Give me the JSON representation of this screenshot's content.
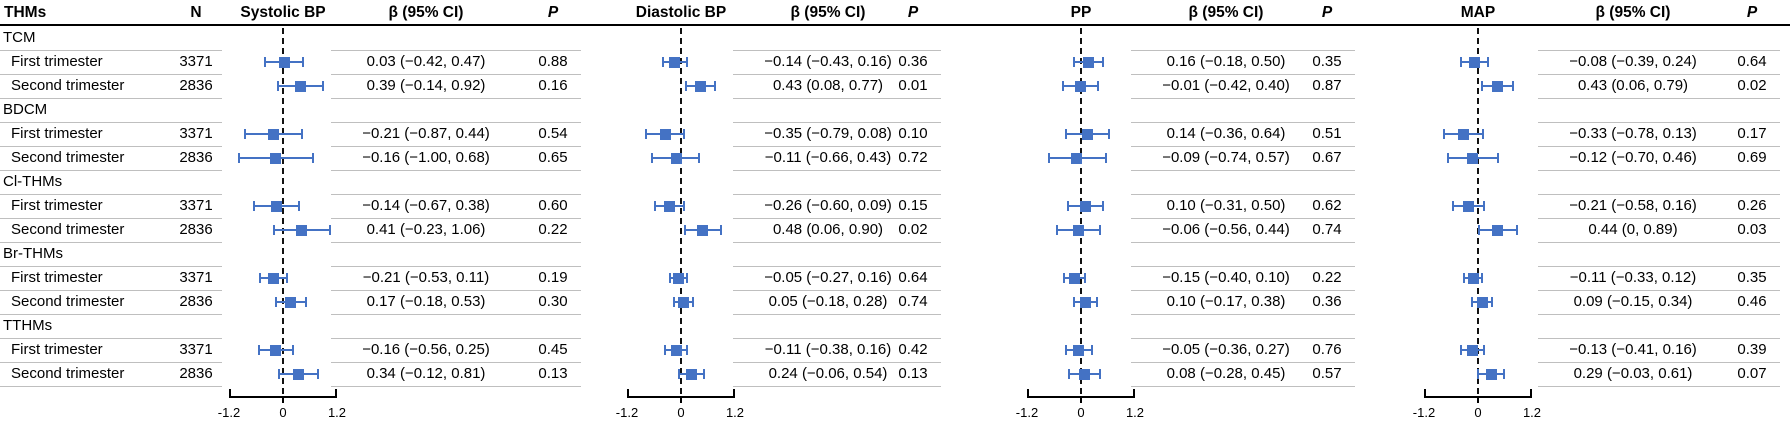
{
  "columns": {
    "thms": "THMs",
    "n": "N",
    "beta_ci": "β (95% CI)",
    "p": "P"
  },
  "colors": {
    "marker": "#4472c4",
    "separator": "#bfbfbf",
    "zero_line": "#111111",
    "text": "#000000"
  },
  "chart_data": {
    "type": "forest",
    "title": "",
    "axis": {
      "min": -1.2,
      "max": 1.2,
      "ticks": [
        -1.2,
        0,
        1.2
      ],
      "tick_labels": [
        "-1.2",
        "0",
        "1.2"
      ]
    },
    "measures": [
      {
        "key": "sbp",
        "label": "Systolic BP"
      },
      {
        "key": "dbp",
        "label": "Diastolic BP"
      },
      {
        "key": "pp",
        "label": "PP"
      },
      {
        "key": "map",
        "label": "MAP"
      }
    ],
    "groups": [
      {
        "name": "TCM",
        "rows": [
          {
            "label": "First trimester",
            "n": "3371",
            "estimates": [
              {
                "beta": 0.03,
                "lo": -0.42,
                "hi": 0.47,
                "text": "0.03 (−0.42, 0.47)",
                "p": "0.88"
              },
              {
                "beta": -0.14,
                "lo": -0.43,
                "hi": 0.16,
                "text": "−0.14 (−0.43, 0.16)",
                "p": "0.36"
              },
              {
                "beta": 0.16,
                "lo": -0.18,
                "hi": 0.5,
                "text": "0.16 (−0.18, 0.50)",
                "p": "0.35"
              },
              {
                "beta": -0.08,
                "lo": -0.39,
                "hi": 0.24,
                "text": "−0.08 (−0.39, 0.24)",
                "p": "0.64"
              }
            ]
          },
          {
            "label": "Second trimester",
            "n": "2836",
            "estimates": [
              {
                "beta": 0.39,
                "lo": -0.14,
                "hi": 0.92,
                "text": "0.39 (−0.14, 0.92)",
                "p": "0.16"
              },
              {
                "beta": 0.43,
                "lo": 0.08,
                "hi": 0.77,
                "text": "0.43 (0.08, 0.77)",
                "p": "0.01"
              },
              {
                "beta": -0.01,
                "lo": -0.42,
                "hi": 0.4,
                "text": "−0.01 (−0.42, 0.40)",
                "p": "0.87"
              },
              {
                "beta": 0.43,
                "lo": 0.06,
                "hi": 0.79,
                "text": "0.43 (0.06, 0.79)",
                "p": "0.02"
              }
            ]
          }
        ]
      },
      {
        "name": "BDCM",
        "rows": [
          {
            "label": "First trimester",
            "n": "3371",
            "estimates": [
              {
                "beta": -0.21,
                "lo": -0.87,
                "hi": 0.44,
                "text": "−0.21 (−0.87, 0.44)",
                "p": "0.54"
              },
              {
                "beta": -0.35,
                "lo": -0.79,
                "hi": 0.08,
                "text": "−0.35 (−0.79, 0.08)",
                "p": "0.10"
              },
              {
                "beta": 0.14,
                "lo": -0.36,
                "hi": 0.64,
                "text": "0.14 (−0.36, 0.64)",
                "p": "0.51"
              },
              {
                "beta": -0.33,
                "lo": -0.78,
                "hi": 0.13,
                "text": "−0.33 (−0.78, 0.13)",
                "p": "0.17"
              }
            ]
          },
          {
            "label": "Second trimester",
            "n": "2836",
            "estimates": [
              {
                "beta": -0.16,
                "lo": -1.0,
                "hi": 0.68,
                "text": "−0.16 (−1.00, 0.68)",
                "p": "0.65"
              },
              {
                "beta": -0.11,
                "lo": -0.66,
                "hi": 0.43,
                "text": "−0.11 (−0.66, 0.43)",
                "p": "0.72"
              },
              {
                "beta": -0.09,
                "lo": -0.74,
                "hi": 0.57,
                "text": "−0.09 (−0.74, 0.57)",
                "p": "0.67"
              },
              {
                "beta": -0.12,
                "lo": -0.7,
                "hi": 0.46,
                "text": "−0.12 (−0.70, 0.46)",
                "p": "0.69"
              }
            ]
          }
        ]
      },
      {
        "name": "Cl-THMs",
        "rows": [
          {
            "label": "First trimester",
            "n": "3371",
            "estimates": [
              {
                "beta": -0.14,
                "lo": -0.67,
                "hi": 0.38,
                "text": "−0.14 (−0.67, 0.38)",
                "p": "0.60"
              },
              {
                "beta": -0.26,
                "lo": -0.6,
                "hi": 0.09,
                "text": "−0.26 (−0.60, 0.09)",
                "p": "0.15"
              },
              {
                "beta": 0.1,
                "lo": -0.31,
                "hi": 0.5,
                "text": "0.10 (−0.31, 0.50)",
                "p": "0.62"
              },
              {
                "beta": -0.21,
                "lo": -0.58,
                "hi": 0.16,
                "text": "−0.21 (−0.58, 0.16)",
                "p": "0.26"
              }
            ]
          },
          {
            "label": "Second trimester",
            "n": "2836",
            "estimates": [
              {
                "beta": 0.41,
                "lo": -0.23,
                "hi": 1.06,
                "text": "0.41 (−0.23, 1.06)",
                "p": "0.22"
              },
              {
                "beta": 0.48,
                "lo": 0.06,
                "hi": 0.9,
                "text": "0.48 (0.06, 0.90)",
                "p": "0.02"
              },
              {
                "beta": -0.06,
                "lo": -0.56,
                "hi": 0.44,
                "text": "−0.06 (−0.56, 0.44)",
                "p": "0.74"
              },
              {
                "beta": 0.44,
                "lo": 0.0,
                "hi": 0.89,
                "text": "0.44 (0, 0.89)",
                "p": "0.03"
              }
            ]
          }
        ]
      },
      {
        "name": "Br-THMs",
        "rows": [
          {
            "label": "First trimester",
            "n": "3371",
            "estimates": [
              {
                "beta": -0.21,
                "lo": -0.53,
                "hi": 0.11,
                "text": "−0.21 (−0.53, 0.11)",
                "p": "0.19"
              },
              {
                "beta": -0.05,
                "lo": -0.27,
                "hi": 0.16,
                "text": "−0.05 (−0.27, 0.16)",
                "p": "0.64"
              },
              {
                "beta": -0.15,
                "lo": -0.4,
                "hi": 0.1,
                "text": "−0.15 (−0.40, 0.10)",
                "p": "0.22"
              },
              {
                "beta": -0.11,
                "lo": -0.33,
                "hi": 0.12,
                "text": "−0.11 (−0.33, 0.12)",
                "p": "0.35"
              }
            ]
          },
          {
            "label": "Second trimester",
            "n": "2836",
            "estimates": [
              {
                "beta": 0.17,
                "lo": -0.18,
                "hi": 0.53,
                "text": "0.17 (−0.18, 0.53)",
                "p": "0.30"
              },
              {
                "beta": 0.05,
                "lo": -0.18,
                "hi": 0.28,
                "text": "0.05 (−0.18, 0.28)",
                "p": "0.74"
              },
              {
                "beta": 0.1,
                "lo": -0.17,
                "hi": 0.38,
                "text": "0.10 (−0.17, 0.38)",
                "p": "0.36"
              },
              {
                "beta": 0.09,
                "lo": -0.15,
                "hi": 0.34,
                "text": "0.09 (−0.15, 0.34)",
                "p": "0.46"
              }
            ]
          }
        ]
      },
      {
        "name": "TTHMs",
        "rows": [
          {
            "label": "First trimester",
            "n": "3371",
            "estimates": [
              {
                "beta": -0.16,
                "lo": -0.56,
                "hi": 0.25,
                "text": "−0.16 (−0.56, 0.25)",
                "p": "0.45"
              },
              {
                "beta": -0.11,
                "lo": -0.38,
                "hi": 0.16,
                "text": "−0.11 (−0.38, 0.16)",
                "p": "0.42"
              },
              {
                "beta": -0.05,
                "lo": -0.36,
                "hi": 0.27,
                "text": "−0.05 (−0.36, 0.27)",
                "p": "0.76"
              },
              {
                "beta": -0.13,
                "lo": -0.41,
                "hi": 0.16,
                "text": "−0.13 (−0.41, 0.16)",
                "p": "0.39"
              }
            ]
          },
          {
            "label": "Second trimester",
            "n": "2836",
            "estimates": [
              {
                "beta": 0.34,
                "lo": -0.12,
                "hi": 0.81,
                "text": "0.34 (−0.12, 0.81)",
                "p": "0.13"
              },
              {
                "beta": 0.24,
                "lo": -0.06,
                "hi": 0.54,
                "text": "0.24 (−0.06, 0.54)",
                "p": "0.13"
              },
              {
                "beta": 0.08,
                "lo": -0.28,
                "hi": 0.45,
                "text": "0.08 (−0.28, 0.45)",
                "p": "0.57"
              },
              {
                "beta": 0.29,
                "lo": -0.03,
                "hi": 0.61,
                "text": "0.29 (−0.03, 0.61)",
                "p": "0.07"
              }
            ]
          }
        ]
      }
    ]
  }
}
